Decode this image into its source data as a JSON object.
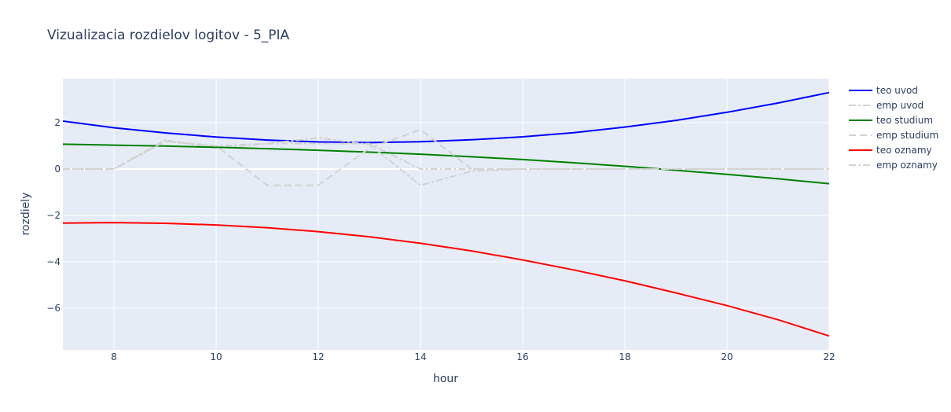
{
  "colors": {
    "plot_bg": "#e5ecf6",
    "grid": "#ffffff",
    "text": "#2a3f5f"
  },
  "chart_data": {
    "type": "line",
    "title": "Vizualizacia rozdielov logitov - 5_PIA",
    "xlabel": "hour",
    "ylabel": "rozdiely",
    "xlim": [
      7,
      22
    ],
    "ylim": [
      -7.8,
      3.9
    ],
    "xticks": [
      8,
      10,
      12,
      14,
      16,
      18,
      20,
      22
    ],
    "yticks": [
      2,
      0,
      -2,
      -4,
      -6
    ],
    "ytick_labels": [
      "2",
      "0",
      "−2",
      "−4",
      "−6"
    ],
    "grid": true,
    "legend_position": "right",
    "series": [
      {
        "name": "teo uvod",
        "color": "#0000ff",
        "dash": "solid",
        "x": [
          7,
          8,
          9,
          10,
          11,
          12,
          13,
          14,
          15,
          16,
          17,
          18,
          19,
          20,
          21,
          22
        ],
        "y": [
          2.07,
          1.78,
          1.56,
          1.38,
          1.25,
          1.17,
          1.14,
          1.18,
          1.26,
          1.39,
          1.57,
          1.81,
          2.1,
          2.45,
          2.85,
          3.3
        ]
      },
      {
        "name": "emp uvod",
        "color": "#d3d3d3",
        "dash": "dashdot",
        "x": [
          7,
          8,
          9,
          10,
          11,
          12,
          13,
          14,
          15,
          16,
          17,
          18,
          19,
          20,
          21,
          22
        ],
        "y": [
          0,
          0,
          1.25,
          0.9,
          1.1,
          1.1,
          1.1,
          0,
          0,
          0,
          0,
          0,
          0,
          0,
          0,
          0
        ]
      },
      {
        "name": "teo studium",
        "color": "#008000",
        "dash": "solid",
        "x": [
          7,
          8,
          9,
          10,
          11,
          12,
          13,
          14,
          15,
          16,
          17,
          18,
          19,
          20,
          21,
          22
        ],
        "y": [
          1.07,
          1.03,
          0.99,
          0.94,
          0.88,
          0.81,
          0.73,
          0.64,
          0.53,
          0.41,
          0.27,
          0.12,
          -0.05,
          -0.23,
          -0.42,
          -0.63
        ]
      },
      {
        "name": "emp studium",
        "color": "#d3d3d3",
        "dash": "dash",
        "x": [
          7,
          8,
          9,
          10,
          11,
          12,
          13,
          14,
          15,
          16,
          17,
          18,
          19,
          20,
          21,
          22
        ],
        "y": [
          0,
          0,
          1.2,
          1.0,
          -0.7,
          -0.7,
          0.9,
          1.7,
          0,
          0,
          0,
          0,
          0,
          0,
          0,
          0
        ]
      },
      {
        "name": "teo oznamy",
        "color": "#ff0000",
        "dash": "solid",
        "x": [
          7,
          8,
          9,
          10,
          11,
          12,
          13,
          14,
          15,
          16,
          17,
          18,
          19,
          20,
          21,
          22
        ],
        "y": [
          -2.33,
          -2.31,
          -2.34,
          -2.41,
          -2.53,
          -2.7,
          -2.92,
          -3.2,
          -3.53,
          -3.92,
          -4.35,
          -4.82,
          -5.34,
          -5.89,
          -6.5,
          -7.2
        ]
      },
      {
        "name": "emp oznamy",
        "color": "#d3d3d3",
        "dash": "dashdot",
        "x": [
          7,
          8,
          9,
          10,
          11,
          12,
          13,
          14,
          15,
          16,
          17,
          18,
          19,
          20,
          21,
          22
        ],
        "y": [
          0,
          0,
          1.2,
          1.0,
          1.1,
          1.35,
          1.05,
          -0.7,
          -0.1,
          0,
          0,
          0,
          0,
          0,
          0,
          0
        ]
      }
    ]
  }
}
